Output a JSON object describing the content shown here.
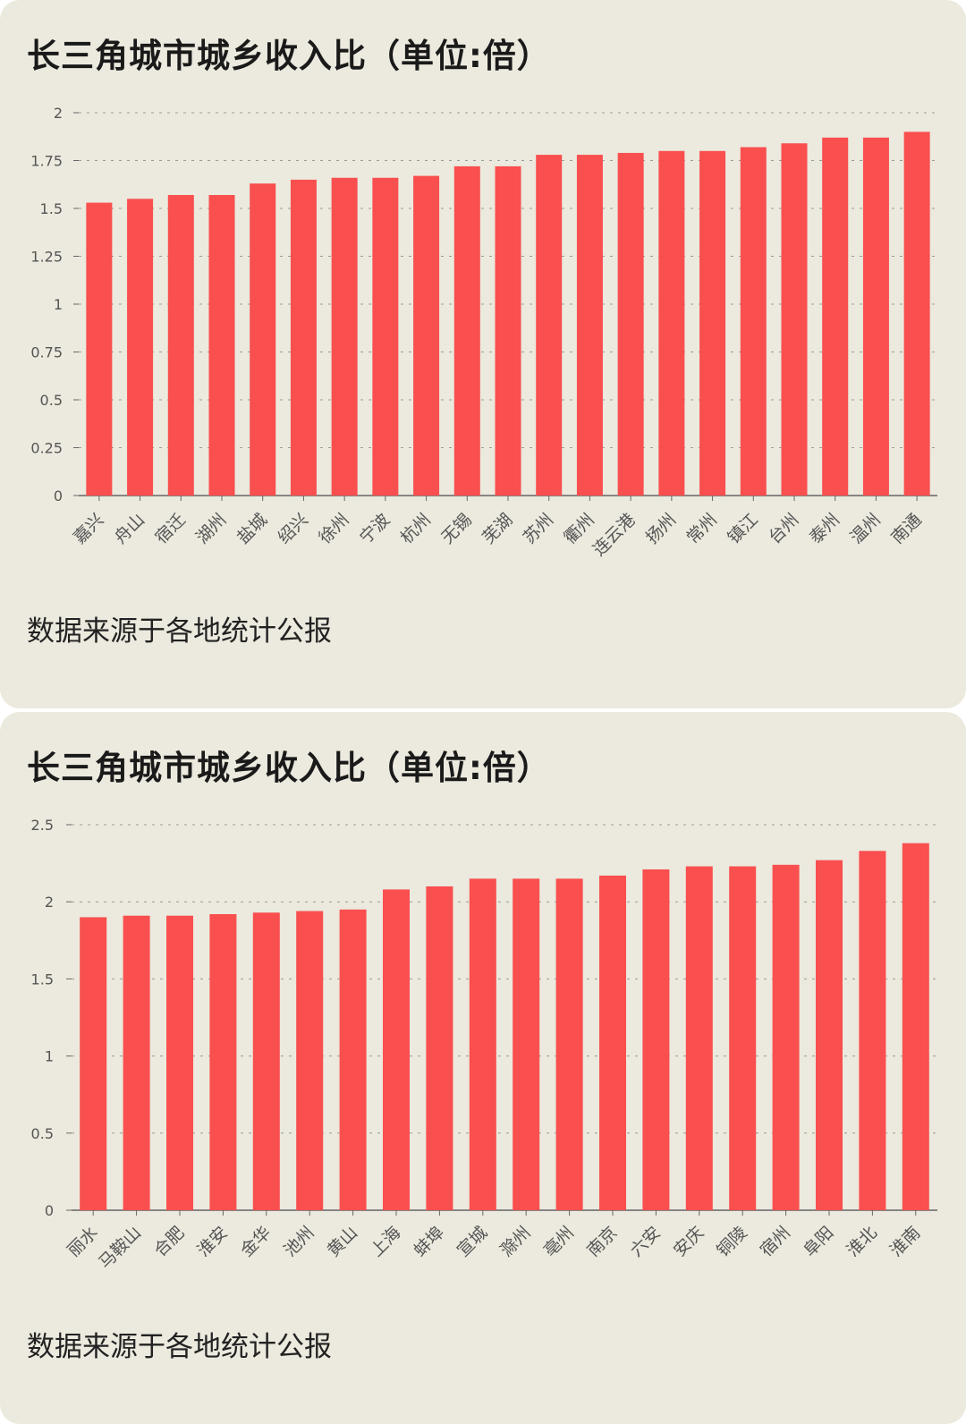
{
  "charts": [
    {
      "title": "长三角城市城乡收入比（单位:倍）",
      "source": "数据来源于各地统计公报"
    },
    {
      "title": "长三角城市城乡收入比（单位:倍）",
      "source": "数据来源于各地统计公报"
    }
  ],
  "colors": {
    "bar": "#f94f4f",
    "background": "#ece9de",
    "grid": "#9a9a9a",
    "axis": "#666666"
  },
  "chart_data": [
    {
      "type": "bar",
      "title": "长三角城市城乡收入比（单位:倍）",
      "xlabel": "",
      "ylabel": "",
      "ylim": [
        0,
        2
      ],
      "yticks": [
        "0",
        "0.25",
        "0.5",
        "0.75",
        "1",
        "1.25",
        "1.5",
        "1.75",
        "2"
      ],
      "grid": true,
      "legend": "none",
      "categories": [
        "嘉兴",
        "舟山",
        "宿迁",
        "湖州",
        "盐城",
        "绍兴",
        "徐州",
        "宁波",
        "杭州",
        "无锡",
        "芜湖",
        "苏州",
        "衢州",
        "连云港",
        "扬州",
        "常州",
        "镇江",
        "台州",
        "泰州",
        "温州",
        "南通"
      ],
      "values": [
        1.53,
        1.55,
        1.57,
        1.57,
        1.63,
        1.65,
        1.66,
        1.66,
        1.67,
        1.72,
        1.72,
        1.78,
        1.78,
        1.79,
        1.8,
        1.8,
        1.82,
        1.84,
        1.87,
        1.87,
        1.9
      ],
      "note": "数据来源于各地统计公报"
    },
    {
      "type": "bar",
      "title": "长三角城市城乡收入比（单位:倍）",
      "xlabel": "",
      "ylabel": "",
      "ylim": [
        0,
        2.5
      ],
      "yticks": [
        "0",
        "0.5",
        "1",
        "1.5",
        "2",
        "2.5"
      ],
      "grid": true,
      "legend": "none",
      "categories": [
        "丽水",
        "马鞍山",
        "合肥",
        "淮安",
        "金华",
        "池州",
        "黄山",
        "上海",
        "蚌埠",
        "宣城",
        "滁州",
        "亳州",
        "南京",
        "六安",
        "安庆",
        "铜陵",
        "宿州",
        "阜阳",
        "淮北",
        "淮南"
      ],
      "values": [
        1.9,
        1.91,
        1.91,
        1.92,
        1.93,
        1.94,
        1.95,
        2.08,
        2.1,
        2.15,
        2.15,
        2.15,
        2.17,
        2.21,
        2.23,
        2.23,
        2.24,
        2.27,
        2.33,
        2.38
      ],
      "note": "数据来源于各地统计公报"
    }
  ]
}
